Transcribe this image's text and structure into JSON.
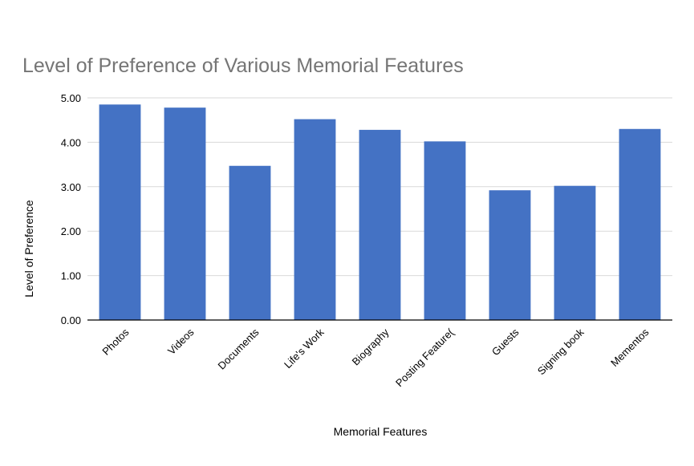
{
  "chart_data": {
    "type": "bar",
    "title": "Level of Preference of Various Memorial Features",
    "xlabel": "Memorial Features",
    "ylabel": "Level of Preference",
    "categories": [
      "Photos",
      "Videos",
      "Documents",
      "Life's Work",
      "Biography",
      "Posting Feature(",
      "Guests",
      "Signing book",
      "Mementos"
    ],
    "values": [
      4.85,
      4.78,
      3.47,
      4.52,
      4.28,
      4.02,
      2.92,
      3.02,
      4.3
    ],
    "ylim": [
      0,
      5
    ],
    "yticks": [
      "0.00",
      "1.00",
      "2.00",
      "3.00",
      "4.00",
      "5.00"
    ],
    "grid": true,
    "legend": "none",
    "colors": {
      "bar": "#4472c4",
      "title": "#757575",
      "grid": "#d9d9d9"
    }
  }
}
